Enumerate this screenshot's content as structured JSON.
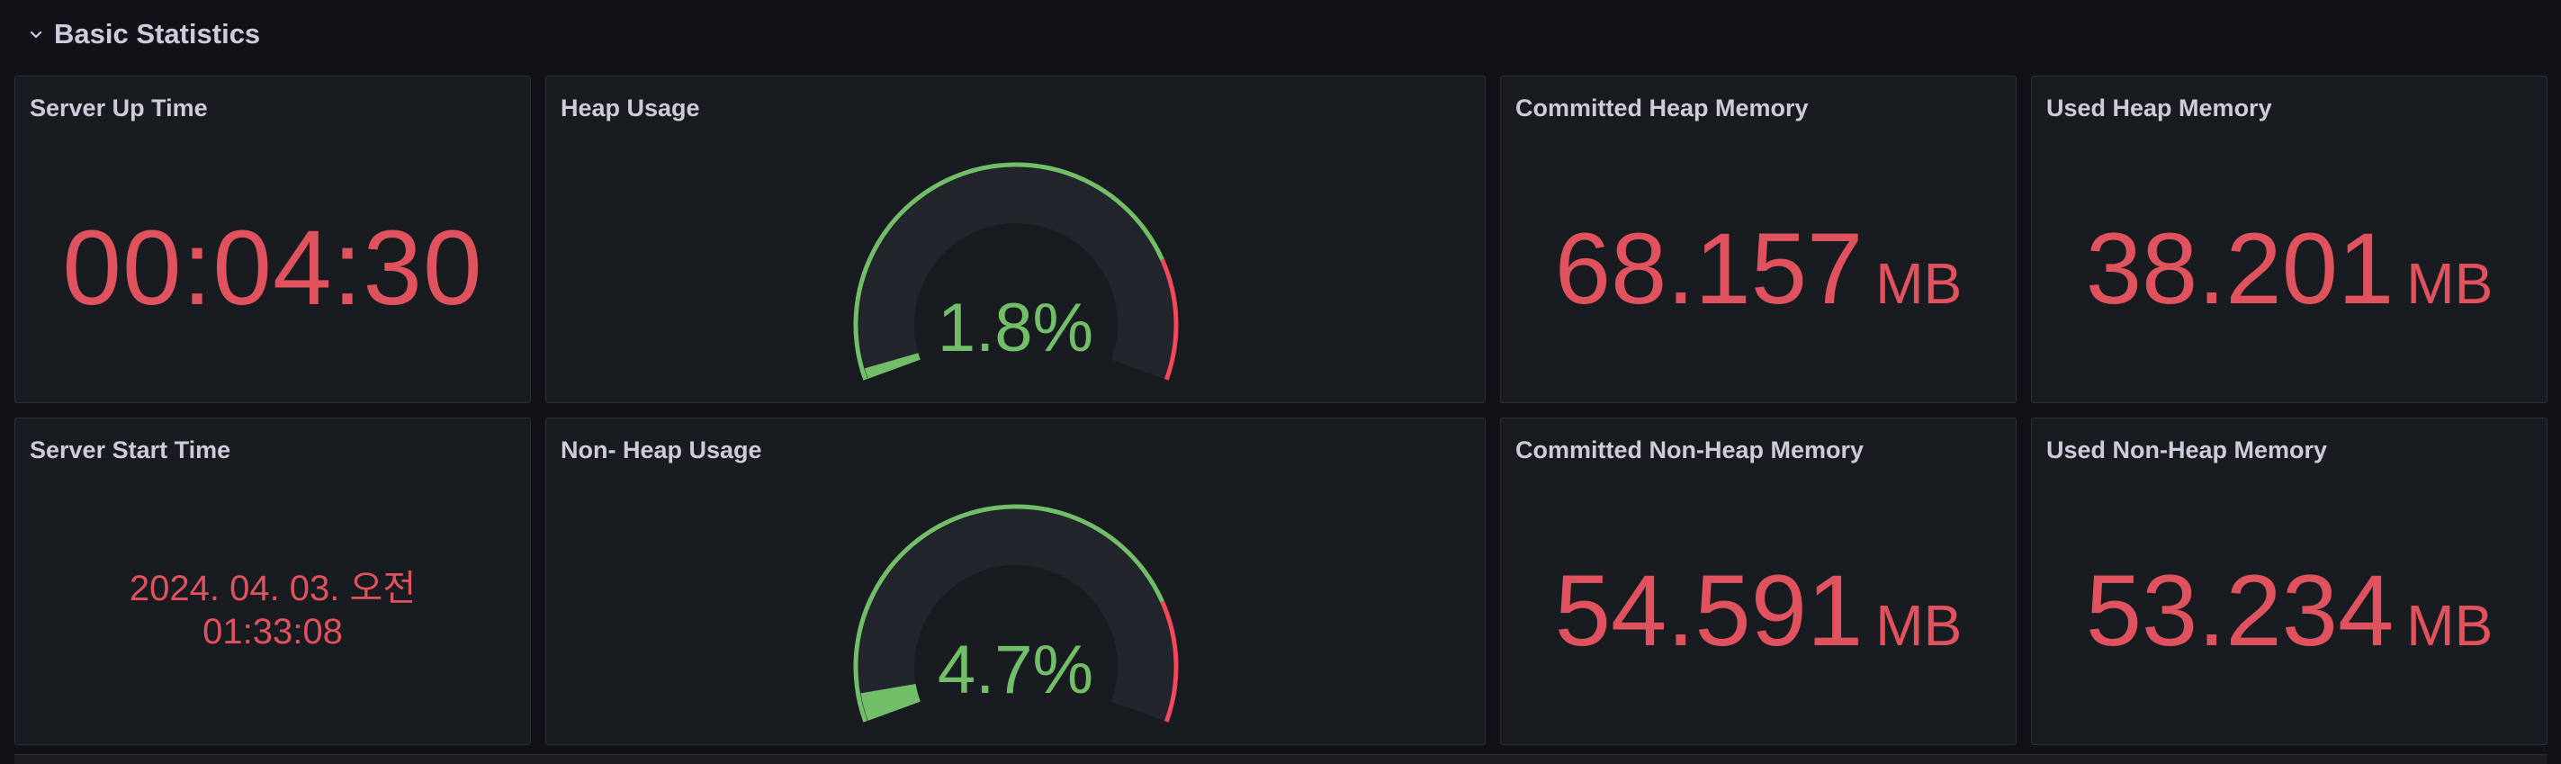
{
  "row": {
    "title": "Basic Statistics",
    "collapse_icon": "chevron-down-icon"
  },
  "panels": {
    "server_up_time": {
      "title": "Server Up Time",
      "value": "00:04:30"
    },
    "heap_usage": {
      "title": "Heap Usage",
      "value_text": "1.8%",
      "percent": 1.8,
      "thresholds": {
        "base_color": "#73bf69",
        "threshold_percent": 80,
        "threshold_color": "#f2495c"
      }
    },
    "committed_heap": {
      "title": "Committed Heap Memory",
      "value": "68.157",
      "unit": "MB"
    },
    "used_heap": {
      "title": "Used Heap Memory",
      "value": "38.201",
      "unit": "MB"
    },
    "server_start_time": {
      "title": "Server Start Time",
      "date_line": "2024. 04. 03. 오전",
      "time_line": "01:33:08"
    },
    "non_heap_usage": {
      "title": "Non- Heap Usage",
      "value_text": "4.7%",
      "percent": 4.7,
      "thresholds": {
        "base_color": "#73bf69",
        "threshold_percent": 80,
        "threshold_color": "#f2495c"
      }
    },
    "committed_non_heap": {
      "title": "Committed Non-Heap Memory",
      "value": "54.591",
      "unit": "MB"
    },
    "used_non_heap": {
      "title": "Used Non-Heap Memory",
      "value": "53.234",
      "unit": "MB"
    }
  },
  "colors": {
    "value_red": "#e0525e",
    "gauge_green": "#73bf69",
    "gauge_track": "#22252b",
    "panel_bg": "#181b1f",
    "page_bg": "#111217"
  }
}
